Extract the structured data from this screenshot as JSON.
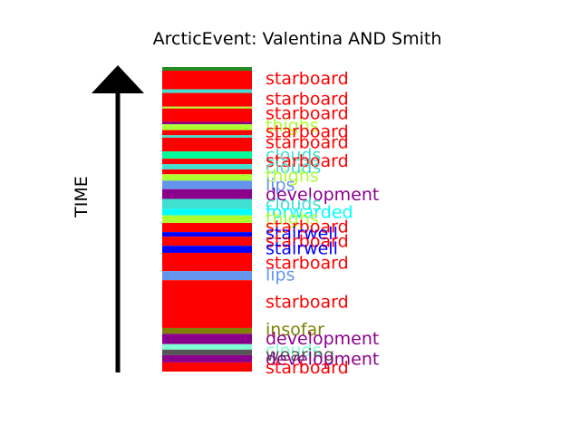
{
  "chart_data": {
    "type": "timeline-bar",
    "title": "ArcticEvent: Valentina AND Smith",
    "ylabel": "TIME",
    "segments": [
      {
        "name": "",
        "color": "#228B22",
        "start": 0.0,
        "end": 0.012
      },
      {
        "name": "starboard",
        "color": "#FF0000",
        "start": 0.012,
        "end": 0.073
      },
      {
        "name": "",
        "color": "#40E0D0",
        "start": 0.073,
        "end": 0.085
      },
      {
        "name": "starboard",
        "color": "#FF0000",
        "start": 0.085,
        "end": 0.13
      },
      {
        "name": "",
        "color": "#ADFF2F",
        "start": 0.13,
        "end": 0.136
      },
      {
        "name": "starboard",
        "color": "#FF0000",
        "start": 0.136,
        "end": 0.18
      },
      {
        "name": "",
        "color": "#8B008B",
        "start": 0.18,
        "end": 0.188
      },
      {
        "name": "thighs",
        "color": "#ADFF2F",
        "start": 0.188,
        "end": 0.207
      },
      {
        "name": "starboard",
        "color": "#FF0000",
        "start": 0.207,
        "end": 0.224
      },
      {
        "name": "",
        "color": "#40E0D0",
        "start": 0.224,
        "end": 0.232
      },
      {
        "name": "starboard",
        "color": "#FF0000",
        "start": 0.232,
        "end": 0.277
      },
      {
        "name": "clouds",
        "color": "#00FA9A",
        "start": 0.277,
        "end": 0.301
      },
      {
        "name": "starboard",
        "color": "#FF0000",
        "start": 0.301,
        "end": 0.319
      },
      {
        "name": "clouds",
        "color": "#40E0D0",
        "start": 0.319,
        "end": 0.336
      },
      {
        "name": "",
        "color": "#FF0000",
        "start": 0.336,
        "end": 0.352
      },
      {
        "name": "thighs",
        "color": "#ADFF2F",
        "start": 0.352,
        "end": 0.373
      },
      {
        "name": "lips",
        "color": "#6495ED",
        "start": 0.373,
        "end": 0.401
      },
      {
        "name": "development",
        "color": "#8B008B",
        "start": 0.401,
        "end": 0.433
      },
      {
        "name": "clouds",
        "color": "#40E0D0",
        "start": 0.433,
        "end": 0.466
      },
      {
        "name": "forwarded",
        "color": "#00FFFF",
        "start": 0.466,
        "end": 0.487
      },
      {
        "name": "thighs",
        "color": "#ADFF2F",
        "start": 0.487,
        "end": 0.512
      },
      {
        "name": "starboard",
        "color": "#FF0000",
        "start": 0.512,
        "end": 0.542
      },
      {
        "name": "stairwell",
        "color": "#0000FF",
        "start": 0.542,
        "end": 0.557
      },
      {
        "name": "starboard",
        "color": "#FF0000",
        "start": 0.557,
        "end": 0.587
      },
      {
        "name": "stairwell",
        "color": "#0000FF",
        "start": 0.587,
        "end": 0.61
      },
      {
        "name": "starboard",
        "color": "#FF0000",
        "start": 0.61,
        "end": 0.67
      },
      {
        "name": "lips",
        "color": "#6495ED",
        "start": 0.67,
        "end": 0.7
      },
      {
        "name": "starboard",
        "color": "#FF0000",
        "start": 0.7,
        "end": 0.857
      },
      {
        "name": "insofar",
        "color": "#808000",
        "start": 0.857,
        "end": 0.876
      },
      {
        "name": "development",
        "color": "#8B008B",
        "start": 0.876,
        "end": 0.91
      },
      {
        "name": "clouds",
        "color": "#7FFFD4",
        "start": 0.91,
        "end": 0.928
      },
      {
        "name": "wearing",
        "color": "#555555",
        "start": 0.928,
        "end": 0.946
      },
      {
        "name": "development",
        "color": "#8B008B",
        "start": 0.946,
        "end": 0.97
      },
      {
        "name": "starboard",
        "color": "#FF0000",
        "start": 0.97,
        "end": 1.0
      }
    ],
    "labels": [
      {
        "text": "starboard",
        "color": "#FF0000",
        "pos": 0.035
      },
      {
        "text": "starboard",
        "color": "#FF0000",
        "pos": 0.103
      },
      {
        "text": "starboard",
        "color": "#FF0000",
        "pos": 0.15
      },
      {
        "text": "thighs",
        "color": "#ADFF2F",
        "pos": 0.19
      },
      {
        "text": "starboard",
        "color": "#FF0000",
        "pos": 0.21
      },
      {
        "text": "starboard",
        "color": "#FF0000",
        "pos": 0.246
      },
      {
        "text": "clouds",
        "color": "#40E0D0",
        "pos": 0.287
      },
      {
        "text": "starboard",
        "color": "#FF0000",
        "pos": 0.306
      },
      {
        "text": "clouds",
        "color": "#40E0D0",
        "pos": 0.327
      },
      {
        "text": "thighs",
        "color": "#ADFF2F",
        "pos": 0.356
      },
      {
        "text": "lips",
        "color": "#6495ED",
        "pos": 0.386
      },
      {
        "text": "development",
        "color": "#8B008B",
        "pos": 0.416
      },
      {
        "text": "clouds",
        "color": "#40E0D0",
        "pos": 0.448
      },
      {
        "text": "forwarded",
        "color": "#00FFFF",
        "pos": 0.475
      },
      {
        "text": "thighs",
        "color": "#ADFF2F",
        "pos": 0.496
      },
      {
        "text": "starboard",
        "color": "#FF0000",
        "pos": 0.523
      },
      {
        "text": "stairwell",
        "color": "#0000FF",
        "pos": 0.544
      },
      {
        "text": "starboard",
        "color": "#FF0000",
        "pos": 0.57
      },
      {
        "text": "stairwell",
        "color": "#0000FF",
        "pos": 0.593
      },
      {
        "text": "starboard",
        "color": "#FF0000",
        "pos": 0.642
      },
      {
        "text": "lips",
        "color": "#6495ED",
        "pos": 0.68
      },
      {
        "text": "starboard",
        "color": "#FF0000",
        "pos": 0.77
      },
      {
        "text": "insofar",
        "color": "#808000",
        "pos": 0.86
      },
      {
        "text": "development",
        "color": "#8B008B",
        "pos": 0.89
      },
      {
        "text": "clouds",
        "color": "#7FFFD4",
        "pos": 0.928
      },
      {
        "text": "wearing",
        "color": "#555555",
        "pos": 0.943
      },
      {
        "text": "development",
        "color": "#8B008B",
        "pos": 0.957
      },
      {
        "text": "starboard",
        "color": "#FF0000",
        "pos": 0.985
      }
    ]
  }
}
